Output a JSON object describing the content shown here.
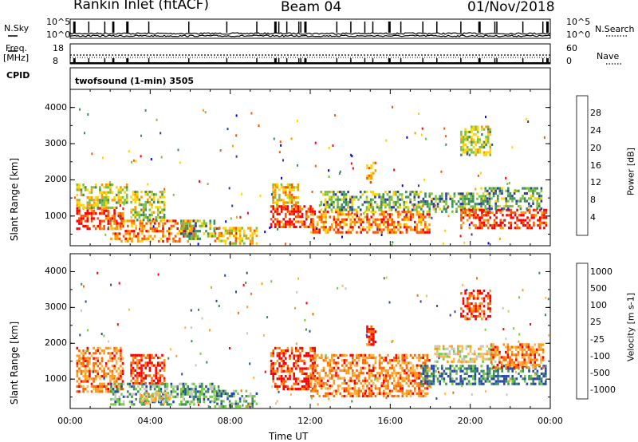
{
  "header": {
    "radar": "Rankin Inlet (fitACF)",
    "beam": "Beam 04",
    "date": "01/Nov/2018"
  },
  "side_labels": {
    "nsky": "N.Sky",
    "nsearch": "N.Search",
    "freq": "Freq.",
    "freq_unit": "[MHz]",
    "nave": "Nave",
    "cpid": "CPID",
    "cpid_value": "twofsound (1-min) 3505"
  },
  "small_axes": {
    "nsky_ticks": [
      "10^5",
      "10^0"
    ],
    "nsearch_ticks": [
      "10^5",
      "10^0"
    ],
    "freq_ticks": [
      "18",
      "8"
    ],
    "nave_ticks": [
      "60",
      "0"
    ]
  },
  "colors": {
    "power": [
      "#0000ff",
      "#2e3d9e",
      "#3e8f5a",
      "#7fbf3f",
      "#ffd400",
      "#ff9900",
      "#ff5500",
      "#ff0000"
    ],
    "velocity": [
      "#ff0000",
      "#ff6a00",
      "#ff9a1a",
      "#ffb84d",
      "#c9c9c0",
      "#77cc44",
      "#3e8f5a",
      "#2a4aa8"
    ]
  },
  "chart_data": [
    {
      "type": "heatmap",
      "name_panel": "power",
      "ylabel": "Slant Range [km]",
      "xlabel": "Time UT",
      "x_ticks": [
        "00:00",
        "04:00",
        "08:00",
        "12:00",
        "16:00",
        "20:00",
        "00:00"
      ],
      "y_ticks": [
        "1000",
        "2000",
        "3000",
        "4000"
      ],
      "ylim": [
        180,
        4500
      ],
      "xlim_hours": [
        0,
        24
      ],
      "colorbar": {
        "label": "Power [dB]",
        "ticks": [
          "4",
          "8",
          "12",
          "16",
          "20",
          "24",
          "28"
        ]
      },
      "regions": [
        {
          "t0": 0.3,
          "t1": 2.6,
          "r0": 650,
          "r1": 1250,
          "level": 7
        },
        {
          "t0": 0.3,
          "t1": 2.8,
          "r0": 1250,
          "r1": 1900,
          "level": 4
        },
        {
          "t0": 2.0,
          "t1": 6.2,
          "r0": 300,
          "r1": 900,
          "level": 6
        },
        {
          "t0": 3.0,
          "t1": 4.7,
          "r0": 900,
          "r1": 1700,
          "level": 4
        },
        {
          "t0": 5.5,
          "t1": 7.4,
          "r0": 350,
          "r1": 900,
          "level": 3
        },
        {
          "t0": 7.2,
          "t1": 9.3,
          "r0": 250,
          "r1": 700,
          "level": 5
        },
        {
          "t0": 10.0,
          "t1": 12.2,
          "r0": 700,
          "r1": 1300,
          "level": 7
        },
        {
          "t0": 10.1,
          "t1": 11.4,
          "r0": 1300,
          "r1": 1900,
          "level": 5
        },
        {
          "t0": 12.0,
          "t1": 18.0,
          "r0": 550,
          "r1": 1150,
          "level": 6
        },
        {
          "t0": 12.5,
          "t1": 17.5,
          "r0": 1150,
          "r1": 1700,
          "level": 3
        },
        {
          "t0": 17.5,
          "t1": 21.0,
          "r0": 1100,
          "r1": 1650,
          "level": 3
        },
        {
          "t0": 19.5,
          "t1": 23.8,
          "r0": 700,
          "r1": 1200,
          "level": 7
        },
        {
          "t0": 20.5,
          "t1": 23.6,
          "r0": 1200,
          "r1": 1800,
          "level": 3
        },
        {
          "t0": 14.8,
          "t1": 15.3,
          "r0": 2000,
          "r1": 2500,
          "level": 5
        },
        {
          "t0": 19.5,
          "t1": 21.0,
          "r0": 2700,
          "r1": 3500,
          "level": 4
        }
      ]
    },
    {
      "type": "heatmap",
      "name_panel": "velocity",
      "ylabel": "Slant Range [km]",
      "xlabel": "Time UT",
      "x_ticks": [
        "00:00",
        "04:00",
        "08:00",
        "12:00",
        "16:00",
        "20:00",
        "00:00"
      ],
      "y_ticks": [
        "1000",
        "2000",
        "3000",
        "4000"
      ],
      "ylim": [
        180,
        4500
      ],
      "xlim_hours": [
        0,
        24
      ],
      "colorbar": {
        "label": "Velocity [m s-1]",
        "ticks": [
          "1000",
          "500",
          "100",
          "25",
          "-25",
          "-100",
          "-500",
          "-1000"
        ]
      },
      "regions": [
        {
          "t0": 0.3,
          "t1": 2.6,
          "r0": 650,
          "r1": 1900,
          "level": 2
        },
        {
          "t0": 2.0,
          "t1": 6.2,
          "r0": 300,
          "r1": 900,
          "level": 6
        },
        {
          "t0": 3.0,
          "t1": 4.7,
          "r0": 900,
          "r1": 1700,
          "level": 1
        },
        {
          "t0": 3.5,
          "t1": 5.0,
          "r0": 300,
          "r1": 650,
          "level": 4
        },
        {
          "t0": 5.5,
          "t1": 7.4,
          "r0": 350,
          "r1": 900,
          "level": 6
        },
        {
          "t0": 7.2,
          "t1": 9.3,
          "r0": 250,
          "r1": 700,
          "level": 6
        },
        {
          "t0": 10.0,
          "t1": 12.2,
          "r0": 700,
          "r1": 1900,
          "level": 1
        },
        {
          "t0": 12.0,
          "t1": 18.0,
          "r0": 550,
          "r1": 1700,
          "level": 2
        },
        {
          "t0": 17.5,
          "t1": 23.8,
          "r0": 900,
          "r1": 1400,
          "level": 7
        },
        {
          "t0": 18.2,
          "t1": 21.5,
          "r0": 1500,
          "r1": 1950,
          "level": 4
        },
        {
          "t0": 21.0,
          "t1": 23.6,
          "r0": 1300,
          "r1": 2000,
          "level": 2
        },
        {
          "t0": 14.8,
          "t1": 15.3,
          "r0": 2000,
          "r1": 2500,
          "level": 1
        },
        {
          "t0": 19.5,
          "t1": 21.0,
          "r0": 2700,
          "r1": 3500,
          "level": 1
        }
      ]
    }
  ]
}
